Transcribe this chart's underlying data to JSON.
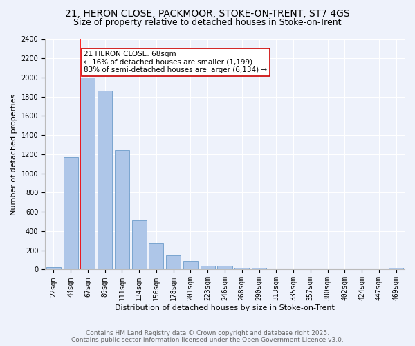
{
  "title_line1": "21, HERON CLOSE, PACKMOOR, STOKE-ON-TRENT, ST7 4GS",
  "title_line2": "Size of property relative to detached houses in Stoke-on-Trent",
  "xlabel": "Distribution of detached houses by size in Stoke-on-Trent",
  "ylabel": "Number of detached properties",
  "categories": [
    "22sqm",
    "44sqm",
    "67sqm",
    "89sqm",
    "111sqm",
    "134sqm",
    "156sqm",
    "178sqm",
    "201sqm",
    "223sqm",
    "246sqm",
    "268sqm",
    "290sqm",
    "313sqm",
    "335sqm",
    "357sqm",
    "380sqm",
    "402sqm",
    "424sqm",
    "447sqm",
    "469sqm"
  ],
  "values": [
    25,
    1170,
    2000,
    1860,
    1240,
    515,
    275,
    150,
    90,
    40,
    40,
    15,
    20,
    5,
    5,
    5,
    5,
    5,
    5,
    5,
    15
  ],
  "bar_color": "#aec6e8",
  "bar_edge_color": "#5a8fc2",
  "highlight_index": 2,
  "red_line_x": 2,
  "annotation_text": "21 HERON CLOSE: 68sqm\n← 16% of detached houses are smaller (1,199)\n83% of semi-detached houses are larger (6,134) →",
  "annotation_box_color": "#ffffff",
  "annotation_box_edge": "#cc0000",
  "ylim": [
    0,
    2400
  ],
  "yticks": [
    0,
    200,
    400,
    600,
    800,
    1000,
    1200,
    1400,
    1600,
    1800,
    2000,
    2200,
    2400
  ],
  "background_color": "#eef2fb",
  "grid_color": "#ffffff",
  "footer_text": "Contains HM Land Registry data © Crown copyright and database right 2025.\nContains public sector information licensed under the Open Government Licence v3.0.",
  "title_fontsize": 10,
  "subtitle_fontsize": 9,
  "axis_label_fontsize": 8,
  "tick_fontsize": 7,
  "annotation_fontsize": 7.5,
  "footer_fontsize": 6.5
}
